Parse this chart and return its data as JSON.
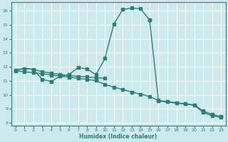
{
  "bg_color": "#cce9eb",
  "grid_color": "#ffffff",
  "line_color": "#2e7d78",
  "xlabel": "Humidex (Indice chaleur)",
  "xlim": [
    -0.5,
    23.5
  ],
  "ylim": [
    7.8,
    16.6
  ],
  "yticks": [
    8,
    9,
    10,
    11,
    12,
    13,
    14,
    15,
    16
  ],
  "xticks": [
    0,
    1,
    2,
    3,
    4,
    5,
    6,
    7,
    8,
    9,
    10,
    11,
    12,
    13,
    14,
    15,
    16,
    17,
    18,
    19,
    20,
    21,
    22,
    23
  ],
  "curve1_x": [
    0,
    1,
    2,
    3,
    4,
    5,
    6,
    7,
    8,
    9,
    10,
    11,
    12,
    13,
    14,
    15
  ],
  "curve1_y": [
    11.75,
    11.88,
    11.82,
    11.1,
    10.95,
    11.35,
    11.45,
    11.95,
    11.85,
    11.45,
    12.6,
    15.05,
    16.1,
    16.2,
    16.15,
    15.35
  ],
  "curve2_x": [
    15,
    16,
    17,
    18,
    19,
    20,
    21,
    22,
    23
  ],
  "curve2_y": [
    15.35,
    9.55,
    9.5,
    9.4,
    9.35,
    9.25,
    8.75,
    8.5,
    8.4
  ],
  "line_straight_x": [
    0,
    1,
    2,
    3,
    4,
    5,
    6,
    7,
    8,
    9,
    10,
    11,
    12,
    13,
    14,
    15,
    16,
    17,
    18,
    19,
    20,
    21,
    22,
    23
  ],
  "line_straight_y": [
    11.72,
    11.65,
    11.58,
    11.5,
    11.42,
    11.34,
    11.26,
    11.18,
    11.1,
    11.02,
    10.75,
    10.55,
    10.38,
    10.2,
    10.05,
    9.88,
    9.6,
    9.52,
    9.44,
    9.36,
    9.28,
    8.85,
    8.6,
    8.45
  ],
  "line_flat_x": [
    0,
    1,
    2,
    3,
    4,
    5,
    6,
    7,
    8,
    9,
    10
  ],
  "line_flat_y": [
    11.78,
    11.88,
    11.82,
    11.65,
    11.55,
    11.45,
    11.38,
    11.32,
    11.28,
    11.22,
    11.18
  ]
}
